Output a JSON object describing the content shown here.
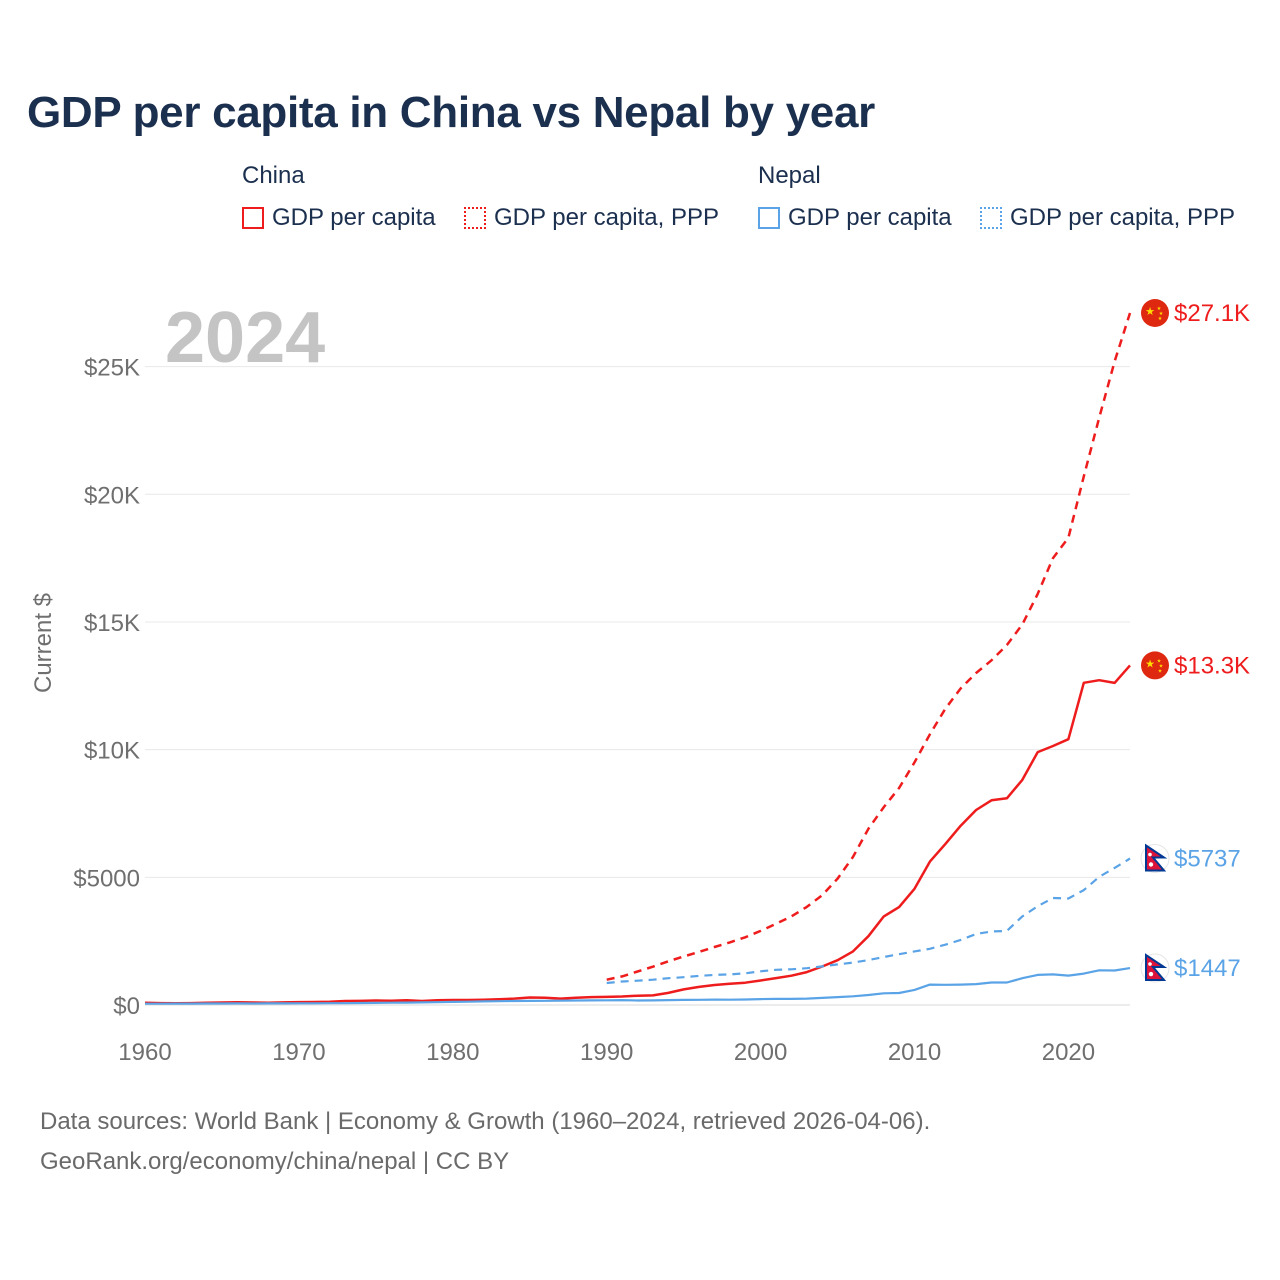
{
  "title": "GDP per capita in China vs Nepal by year",
  "legend": {
    "groups": [
      {
        "name": "China",
        "items": [
          {
            "label": "GDP per capita",
            "style": "solid",
            "color": "#ee1c1c"
          },
          {
            "label": "GDP per capita, PPP",
            "style": "dotted",
            "color": "#ee1c1c"
          }
        ]
      },
      {
        "name": "Nepal",
        "items": [
          {
            "label": "GDP per capita",
            "style": "solid",
            "color": "#5aa3e6"
          },
          {
            "label": "GDP per capita, PPP",
            "style": "dotted",
            "color": "#5aa3e6"
          }
        ]
      }
    ]
  },
  "chart_data": {
    "type": "line",
    "year_watermark": "2024",
    "xlabel": "",
    "ylabel": "Current $",
    "xlim": [
      1960,
      2024
    ],
    "ylim": [
      0,
      27100
    ],
    "xticks": [
      1960,
      1970,
      1980,
      1990,
      2000,
      2010,
      2020
    ],
    "xtick_labels": [
      "1960",
      "1970",
      "1980",
      "1990",
      "2000",
      "2010",
      "2020"
    ],
    "yticks": [
      0,
      5000,
      10000,
      15000,
      20000,
      25000
    ],
    "ytick_labels": [
      "$0",
      "$5000",
      "$10K",
      "$15K",
      "$20K",
      "$25K"
    ],
    "series": [
      {
        "name": "China GDP per capita, PPP",
        "country": "China",
        "color": "#ee1c1c",
        "dash": "dashed",
        "end_label": "$27.1K",
        "flag": "china",
        "x": [
          1990,
          1991,
          1992,
          1993,
          1994,
          1995,
          1996,
          1997,
          1998,
          1999,
          2000,
          2001,
          2002,
          2003,
          2004,
          2005,
          2006,
          2007,
          2008,
          2009,
          2010,
          2011,
          2012,
          2013,
          2014,
          2015,
          2016,
          2017,
          2018,
          2019,
          2020,
          2021,
          2022,
          2023,
          2024
        ],
        "y": [
          990,
          1120,
          1310,
          1500,
          1710,
          1900,
          2080,
          2270,
          2450,
          2650,
          2900,
          3180,
          3470,
          3840,
          4300,
          4950,
          5800,
          6900,
          7750,
          8500,
          9500,
          10600,
          11600,
          12400,
          13000,
          13500,
          14100,
          14900,
          16100,
          17500,
          18300,
          20700,
          23000,
          25200,
          27100
        ]
      },
      {
        "name": "China GDP per capita",
        "country": "China",
        "color": "#ee1c1c",
        "dash": "solid",
        "end_label": "$13.3K",
        "flag": "china",
        "x": [
          1960,
          1961,
          1962,
          1963,
          1964,
          1965,
          1966,
          1967,
          1968,
          1969,
          1970,
          1971,
          1972,
          1973,
          1974,
          1975,
          1976,
          1977,
          1978,
          1979,
          1980,
          1981,
          1982,
          1983,
          1984,
          1985,
          1986,
          1987,
          1988,
          1989,
          1990,
          1991,
          1992,
          1993,
          1994,
          1995,
          1996,
          1997,
          1998,
          1999,
          2000,
          2001,
          2002,
          2003,
          2004,
          2005,
          2006,
          2007,
          2008,
          2009,
          2010,
          2011,
          2012,
          2013,
          2014,
          2015,
          2016,
          2017,
          2018,
          2019,
          2020,
          2021,
          2022,
          2023,
          2024
        ],
        "y": [
          90,
          76,
          70,
          74,
          85,
          98,
          104,
          97,
          91,
          100,
          113,
          118,
          131,
          157,
          160,
          178,
          165,
          185,
          156,
          184,
          195,
          197,
          203,
          225,
          250,
          294,
          282,
          251,
          283,
          310,
          318,
          333,
          366,
          377,
          473,
          610,
          709,
          782,
          829,
          873,
          959,
          1053,
          1149,
          1289,
          1509,
          1753,
          2099,
          2694,
          3468,
          3832,
          4550,
          5614,
          6301,
          7020,
          7636,
          8016,
          8094,
          8817,
          9905,
          10144,
          10409,
          12618,
          12720,
          12614,
          13300
        ]
      },
      {
        "name": "Nepal GDP per capita, PPP",
        "country": "Nepal",
        "color": "#5aa3e6",
        "dash": "dashed",
        "end_label": "$5737",
        "flag": "nepal",
        "x": [
          1990,
          1991,
          1992,
          1993,
          1994,
          1995,
          1996,
          1997,
          1998,
          1999,
          2000,
          2001,
          2002,
          2003,
          2004,
          2005,
          2006,
          2007,
          2008,
          2009,
          2010,
          2011,
          2012,
          2013,
          2014,
          2015,
          2016,
          2017,
          2018,
          2019,
          2020,
          2021,
          2022,
          2023,
          2024
        ],
        "y": [
          860,
          920,
          950,
          990,
          1050,
          1090,
          1140,
          1180,
          1200,
          1240,
          1320,
          1380,
          1400,
          1440,
          1510,
          1590,
          1660,
          1760,
          1880,
          1990,
          2100,
          2200,
          2360,
          2550,
          2780,
          2880,
          2900,
          3470,
          3870,
          4190,
          4170,
          4500,
          5020,
          5370,
          5737
        ]
      },
      {
        "name": "Nepal GDP per capita",
        "country": "Nepal",
        "color": "#5aa3e6",
        "dash": "solid",
        "end_label": "$1447",
        "flag": "nepal",
        "x": [
          1960,
          1961,
          1962,
          1963,
          1964,
          1965,
          1966,
          1967,
          1968,
          1969,
          1970,
          1971,
          1972,
          1973,
          1974,
          1975,
          1976,
          1977,
          1978,
          1979,
          1980,
          1981,
          1982,
          1983,
          1984,
          1985,
          1986,
          1987,
          1988,
          1989,
          1990,
          1991,
          1992,
          1993,
          1994,
          1995,
          1996,
          1997,
          1998,
          1999,
          2000,
          2001,
          2002,
          2003,
          2004,
          2005,
          2006,
          2007,
          2008,
          2009,
          2010,
          2011,
          2012,
          2013,
          2014,
          2015,
          2016,
          2017,
          2018,
          2019,
          2020,
          2021,
          2022,
          2023,
          2024
        ],
        "y": [
          50,
          52,
          54,
          56,
          58,
          60,
          62,
          60,
          62,
          64,
          66,
          68,
          70,
          72,
          78,
          84,
          90,
          94,
          100,
          110,
          120,
          130,
          140,
          150,
          156,
          160,
          165,
          170,
          175,
          180,
          185,
          190,
          175,
          180,
          190,
          200,
          205,
          210,
          208,
          215,
          230,
          240,
          240,
          250,
          280,
          310,
          340,
          390,
          460,
          470,
          590,
          800,
          790,
          800,
          820,
          880,
          880,
          1050,
          1180,
          1200,
          1150,
          1230,
          1360,
          1350,
          1447
        ]
      }
    ]
  },
  "footer": {
    "line1": "Data sources: World Bank | Economy & Growth (1960–2024, retrieved 2026-04-06).",
    "line2": "GeoRank.org/economy/china/nepal | CC BY"
  }
}
